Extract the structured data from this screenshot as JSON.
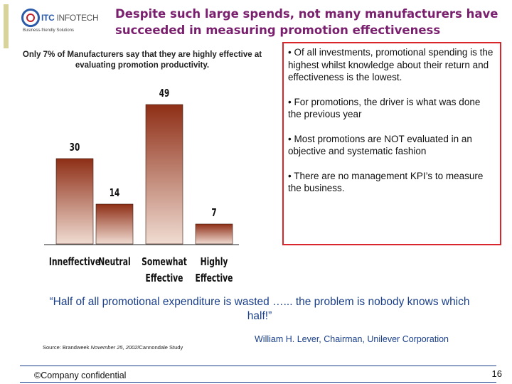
{
  "slide": {
    "title": "Despite such large spends, not many manufacturers have succeeded in measuring promotion effectiveness",
    "colors": {
      "title": "#7a1f6e",
      "accent_bar": "#d7d39a",
      "bar_top": "#8e2e16",
      "bar_bottom": "#f0dcd2",
      "quote": "#1a3f8a",
      "box_border": "#d9262a"
    }
  },
  "logo": {
    "company_part1": "ITC",
    "company_part2": "INFOTECH",
    "tagline": "Business-friendly Solutions"
  },
  "chart_caption": "Only 7% of Manufacturers say that they are highly effective at evaluating promotion productivity.",
  "chart_data": {
    "type": "bar",
    "title": "Only 7% of Manufacturers say that they are highly effective at evaluating promotion productivity.",
    "categories": [
      "Inneffective",
      "Neutral",
      "Somewhat Effective",
      "Highly Effective"
    ],
    "category_lines": [
      [
        "Inneffective"
      ],
      [
        "Neutral"
      ],
      [
        "Somewhat",
        "Effective"
      ],
      [
        "Highly",
        "Effective"
      ]
    ],
    "values": [
      30,
      14,
      49,
      7
    ],
    "ylim": [
      0,
      50
    ],
    "xlabel": "",
    "ylabel": "",
    "grid": false
  },
  "bullets": [
    "•  Of all investments, promotional spending is the highest whilst knowledge about their return and effectiveness is the lowest.",
    "•  For promotions, the driver is what was done the previous year",
    "•  Most promotions are NOT evaluated in an objective and systematic fashion",
    "•  There are no management KPI’s to measure the business."
  ],
  "quote": "“Half of all promotional expenditure is wasted …... the problem is nobody knows which half!”",
  "attribution": "William H. Lever, Chairman, Unilever Corporation",
  "source": {
    "prefix": "Source: Brandweek ",
    "date": "November 25, 2002",
    "suffix": "/Cannondale Study"
  },
  "footer": {
    "confidential": "©Company confidential",
    "page_number": "16"
  }
}
